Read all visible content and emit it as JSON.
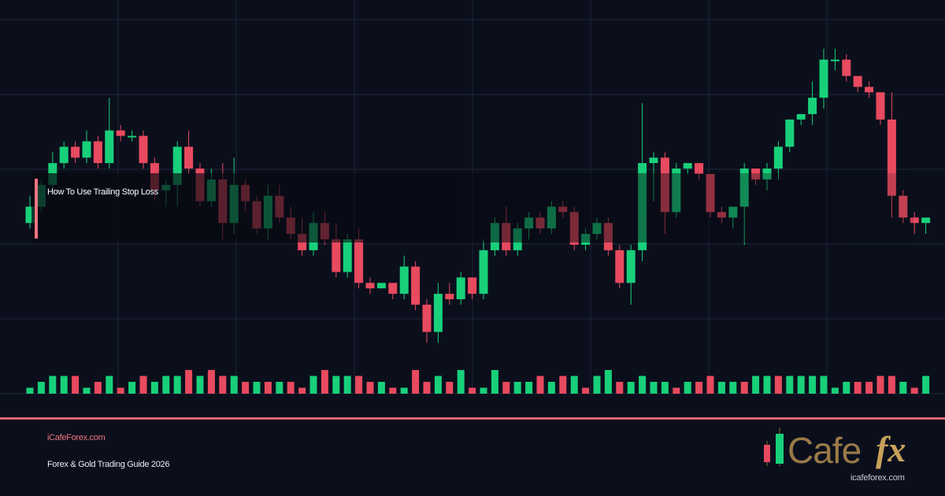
{
  "header": {
    "title": "How To Use Trailing Stop Loss"
  },
  "footer": {
    "site": "iCafeForex.com",
    "guide": "Forex & Gold Trading Guide 2026"
  },
  "logo": {
    "wordmark_left": "Cafe",
    "wordmark_right": "fx",
    "url": "icafeforex.com"
  },
  "colors": {
    "background": "#0b0f1c",
    "grid": "#1f2538",
    "bull": "#18d07a",
    "bear": "#e84a5f",
    "accent": "#f07580",
    "logo_gold": "#b08a4a"
  },
  "chart_data": {
    "type": "candlestick",
    "candles": [
      [
        27,
        30,
        26,
        32
      ],
      [
        30,
        34,
        29,
        35
      ],
      [
        34,
        38,
        33,
        40
      ],
      [
        38,
        41,
        37,
        42
      ],
      [
        41,
        39,
        38,
        42
      ],
      [
        39,
        42,
        38,
        44
      ],
      [
        42,
        38,
        37,
        43
      ],
      [
        38,
        44,
        37,
        50
      ],
      [
        44,
        43,
        42,
        45
      ],
      [
        43,
        43,
        42,
        44
      ],
      [
        43,
        38,
        37,
        44
      ],
      [
        38,
        33,
        31,
        39
      ],
      [
        33,
        34,
        30,
        35
      ],
      [
        34,
        41,
        30,
        42
      ],
      [
        41,
        37,
        36,
        44
      ],
      [
        37,
        31,
        30,
        38
      ],
      [
        31,
        35,
        30,
        37
      ],
      [
        35,
        27,
        24,
        38
      ],
      [
        27,
        34,
        25,
        39
      ],
      [
        34,
        31,
        29,
        35
      ],
      [
        31,
        26,
        25,
        32
      ],
      [
        26,
        32,
        24,
        34
      ],
      [
        32,
        28,
        27,
        34
      ],
      [
        28,
        25,
        24,
        30
      ],
      [
        25,
        22,
        21,
        28
      ],
      [
        22,
        27,
        21,
        29
      ],
      [
        27,
        24,
        23,
        29
      ],
      [
        24,
        18,
        17,
        27
      ],
      [
        18,
        24,
        17,
        25
      ],
      [
        24,
        16,
        15,
        26
      ],
      [
        16,
        15,
        14,
        17
      ],
      [
        15,
        16,
        15,
        16
      ],
      [
        16,
        14,
        13,
        16
      ],
      [
        14,
        19,
        13,
        21
      ],
      [
        19,
        12,
        11,
        20
      ],
      [
        12,
        7,
        5,
        13
      ],
      [
        7,
        14,
        5,
        16
      ],
      [
        14,
        13,
        12,
        16
      ],
      [
        13,
        17,
        12,
        18
      ],
      [
        17,
        14,
        13,
        17
      ],
      [
        14,
        22,
        13,
        24
      ],
      [
        22,
        27,
        21,
        28
      ],
      [
        27,
        22,
        21,
        30
      ],
      [
        22,
        26,
        21,
        27
      ],
      [
        26,
        28,
        24,
        29
      ],
      [
        28,
        26,
        25,
        29
      ],
      [
        26,
        30,
        25,
        31
      ],
      [
        30,
        29,
        28,
        31
      ],
      [
        29,
        23,
        22,
        30
      ],
      [
        23,
        25,
        22,
        26
      ],
      [
        25,
        27,
        24,
        28
      ],
      [
        27,
        22,
        21,
        28
      ],
      [
        22,
        16,
        15,
        23
      ],
      [
        16,
        22,
        12,
        23
      ],
      [
        22,
        38,
        20,
        49
      ],
      [
        38,
        39,
        31,
        40
      ],
      [
        39,
        29,
        25,
        40
      ],
      [
        29,
        37,
        28,
        38
      ],
      [
        37,
        38,
        36,
        38
      ],
      [
        38,
        36,
        35,
        38
      ],
      [
        36,
        29,
        28,
        36
      ],
      [
        29,
        28,
        27,
        30
      ],
      [
        28,
        30,
        26,
        30
      ],
      [
        30,
        37,
        23,
        38
      ],
      [
        37,
        35,
        34,
        37
      ],
      [
        35,
        37,
        33,
        38
      ],
      [
        37,
        41,
        35,
        42
      ],
      [
        41,
        46,
        40,
        46
      ],
      [
        46,
        47,
        45,
        47
      ],
      [
        47,
        50,
        45,
        53
      ],
      [
        50,
        57,
        48,
        59
      ],
      [
        57,
        57,
        55,
        59
      ],
      [
        57,
        54,
        53,
        58
      ],
      [
        54,
        52,
        51,
        54
      ],
      [
        52,
        51,
        50,
        53
      ],
      [
        51,
        46,
        45,
        51
      ],
      [
        46,
        32,
        28,
        51
      ],
      [
        32,
        28,
        27,
        33
      ],
      [
        28,
        27,
        25,
        29
      ],
      [
        27,
        28,
        25,
        28
      ]
    ],
    "volume": [
      [
        1,
        "bull"
      ],
      [
        2,
        "bull"
      ],
      [
        3,
        "bull"
      ],
      [
        3,
        "bull"
      ],
      [
        3,
        "bear"
      ],
      [
        1,
        "bull"
      ],
      [
        2,
        "bear"
      ],
      [
        3,
        "bull"
      ],
      [
        1,
        "bear"
      ],
      [
        2,
        "bull"
      ],
      [
        3,
        "bear"
      ],
      [
        2,
        "bull"
      ],
      [
        3,
        "bull"
      ],
      [
        3,
        "bull"
      ],
      [
        4,
        "bear"
      ],
      [
        3,
        "bull"
      ],
      [
        4,
        "bear"
      ],
      [
        3,
        "bear"
      ],
      [
        3,
        "bull"
      ],
      [
        2,
        "bear"
      ],
      [
        2,
        "bull"
      ],
      [
        2,
        "bear"
      ],
      [
        2,
        "bull"
      ],
      [
        2,
        "bear"
      ],
      [
        1,
        "bear"
      ],
      [
        3,
        "bull"
      ],
      [
        4,
        "bear"
      ],
      [
        3,
        "bull"
      ],
      [
        3,
        "bull"
      ],
      [
        3,
        "bear"
      ],
      [
        2,
        "bear"
      ],
      [
        2,
        "bull"
      ],
      [
        1,
        "bear"
      ],
      [
        1,
        "bull"
      ],
      [
        4,
        "bear"
      ],
      [
        2,
        "bear"
      ],
      [
        3,
        "bull"
      ],
      [
        2,
        "bear"
      ],
      [
        4,
        "bull"
      ],
      [
        1,
        "bear"
      ],
      [
        1,
        "bull"
      ],
      [
        4,
        "bull"
      ],
      [
        2,
        "bear"
      ],
      [
        2,
        "bull"
      ],
      [
        2,
        "bull"
      ],
      [
        3,
        "bear"
      ],
      [
        2,
        "bull"
      ],
      [
        3,
        "bear"
      ],
      [
        3,
        "bull"
      ],
      [
        1,
        "bear"
      ],
      [
        3,
        "bull"
      ],
      [
        4,
        "bull"
      ],
      [
        2,
        "bear"
      ],
      [
        2,
        "bull"
      ],
      [
        3,
        "bull"
      ],
      [
        2,
        "bull"
      ],
      [
        2,
        "bull"
      ],
      [
        1,
        "bear"
      ],
      [
        2,
        "bull"
      ],
      [
        2,
        "bear"
      ],
      [
        3,
        "bear"
      ],
      [
        2,
        "bull"
      ],
      [
        2,
        "bull"
      ],
      [
        2,
        "bear"
      ],
      [
        3,
        "bull"
      ],
      [
        3,
        "bull"
      ],
      [
        3,
        "bear"
      ],
      [
        3,
        "bull"
      ],
      [
        3,
        "bull"
      ],
      [
        3,
        "bull"
      ],
      [
        3,
        "bull"
      ],
      [
        1,
        "bull"
      ],
      [
        2,
        "bull"
      ],
      [
        2,
        "bear"
      ],
      [
        2,
        "bear"
      ],
      [
        3,
        "bear"
      ],
      [
        3,
        "bear"
      ],
      [
        2,
        "bull"
      ],
      [
        1,
        "bear"
      ],
      [
        3,
        "bull"
      ]
    ],
    "grid": true,
    "legend": "none"
  }
}
